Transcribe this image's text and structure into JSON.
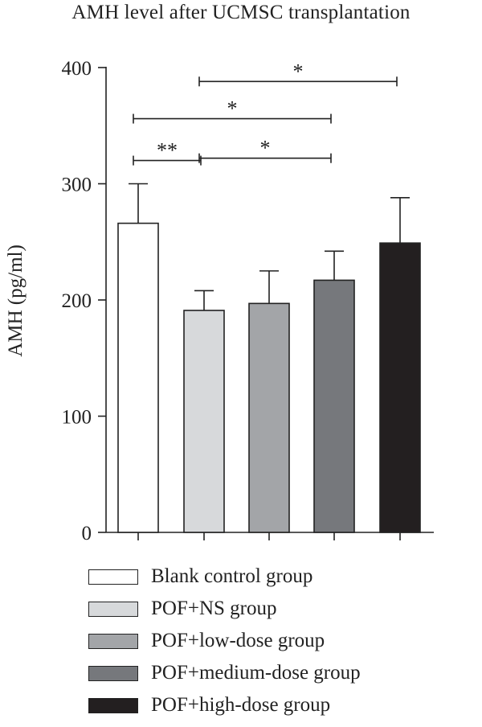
{
  "chart_data": {
    "type": "bar",
    "title": "AMH level after UCMSC transplantation",
    "ylabel": "AMH (pg/ml)",
    "xlabel": "",
    "ylim": [
      0,
      400
    ],
    "yticks": [
      0,
      100,
      200,
      300,
      400
    ],
    "categories": [
      "Blank control group",
      "POF+NS group",
      "POF+low-dose group",
      "POF+medium-dose group",
      "POF+high-dose group"
    ],
    "values": [
      266,
      191,
      197,
      217,
      249
    ],
    "errors": [
      34,
      17,
      28,
      25,
      39
    ],
    "colors": [
      "#ffffff",
      "#d7d9db",
      "#a3a5a8",
      "#76787c",
      "#231f20"
    ],
    "significance": [
      {
        "from": 0,
        "to": 1,
        "y": 320,
        "label": "**"
      },
      {
        "from": 1,
        "to": 3,
        "y": 322,
        "label": "*"
      },
      {
        "from": 0,
        "to": 3,
        "y": 356,
        "label": "*"
      },
      {
        "from": 1,
        "to": 4,
        "y": 388,
        "label": "*"
      }
    ],
    "legend": "bottom"
  }
}
